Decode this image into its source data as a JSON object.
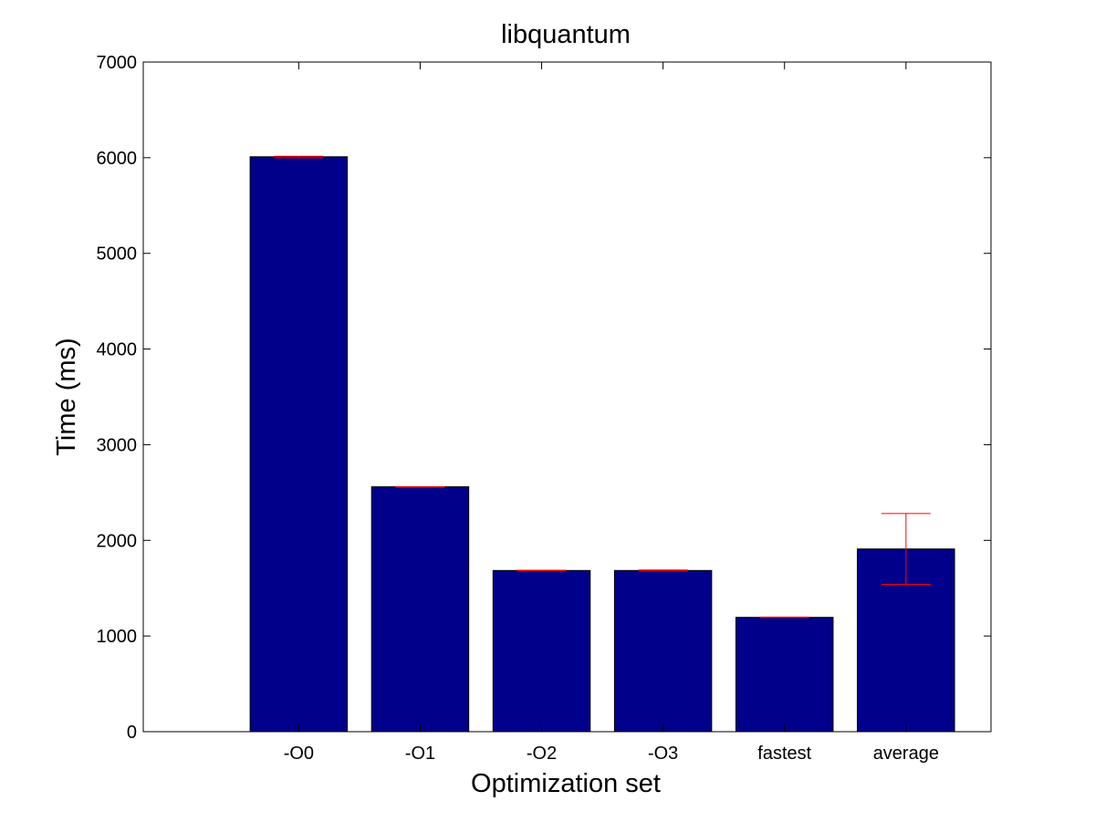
{
  "chart_data": {
    "type": "bar",
    "title": "libquantum",
    "xlabel": "Optimization set",
    "ylabel": "Time (ms)",
    "categories": [
      "-O0",
      "-O1",
      "-O2",
      "-O3",
      "fastest",
      "average"
    ],
    "values": [
      6010,
      2560,
      1685,
      1685,
      1195,
      1910
    ],
    "error_bars": [
      {
        "low": 6000,
        "high": 6015
      },
      {
        "low": 2555,
        "high": 2560
      },
      {
        "low": 1683,
        "high": 1688
      },
      {
        "low": 1680,
        "high": 1690
      },
      {
        "low": 1193,
        "high": 1198
      },
      {
        "low": 1540,
        "high": 2280
      }
    ],
    "ylim": [
      0,
      7000
    ],
    "yticks": [
      0,
      1000,
      2000,
      3000,
      4000,
      5000,
      6000,
      7000
    ],
    "grid": false,
    "bar_color": "#00008B",
    "error_color": "#FF0000"
  }
}
